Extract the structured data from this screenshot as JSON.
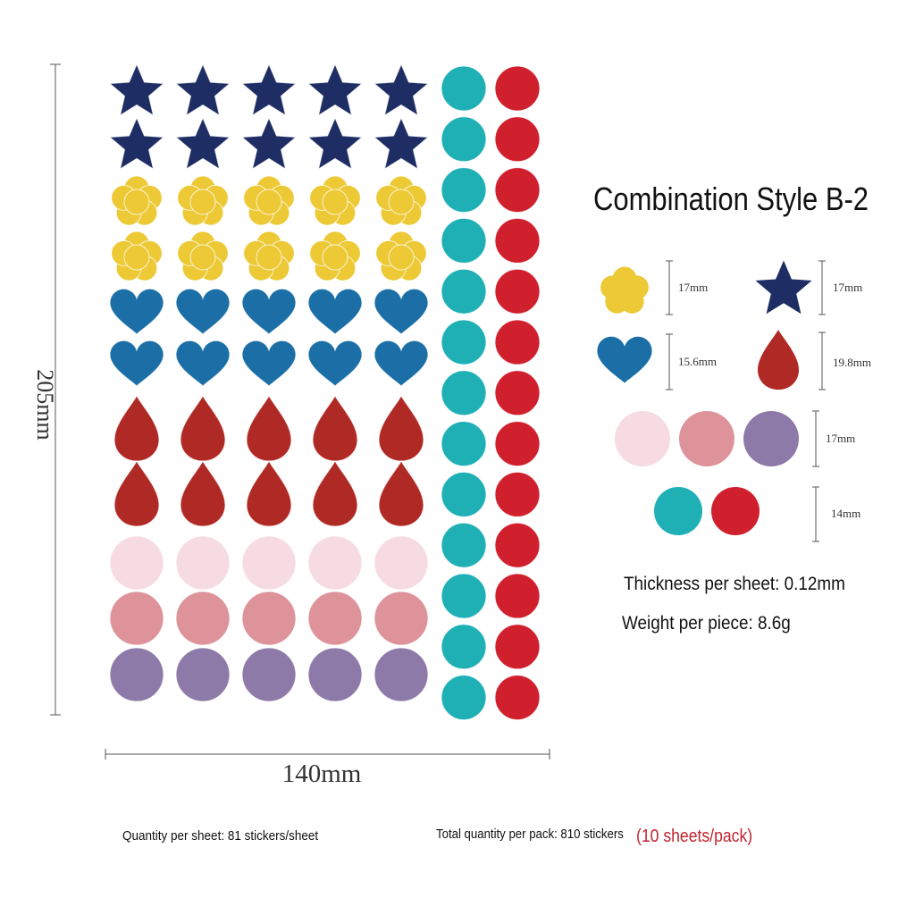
{
  "title": "Combination Style B-2",
  "sheet": {
    "height_label": "205mm",
    "width_label": "140mm",
    "shape_grid": {
      "columns": 5,
      "rows": [
        {
          "shape": "star",
          "color": "#1e2d63"
        },
        {
          "shape": "star",
          "color": "#1e2d63"
        },
        {
          "shape": "flower",
          "color": "#ecc935"
        },
        {
          "shape": "flower",
          "color": "#ecc935"
        },
        {
          "shape": "heart",
          "color": "#1b6fa6"
        },
        {
          "shape": "heart",
          "color": "#1b6fa6"
        },
        {
          "shape": "drop",
          "color": "#b02a25"
        },
        {
          "shape": "drop",
          "color": "#b02a25"
        },
        {
          "shape": "circle",
          "color": "#f7dbe2"
        },
        {
          "shape": "circle",
          "color": "#de939a"
        },
        {
          "shape": "circle",
          "color": "#8e7aa8"
        }
      ]
    },
    "dot_columns": [
      {
        "shape": "circle",
        "color": "#1fb0b6",
        "count": 13
      },
      {
        "shape": "circle",
        "color": "#d0202e",
        "count": 13
      }
    ]
  },
  "specs": {
    "flower": {
      "label": "17mm",
      "color": "#ecc935"
    },
    "star": {
      "label": "17mm",
      "color": "#1e2d63"
    },
    "heart": {
      "label": "15.6mm",
      "color": "#1b6fa6"
    },
    "drop": {
      "label": "19.8mm",
      "color": "#b02a25"
    },
    "circles_large": {
      "label": "17mm",
      "colors": [
        "#f7dbe2",
        "#de939a",
        "#8e7aa8"
      ]
    },
    "circles_small": {
      "label": "14mm",
      "colors": [
        "#1fb0b6",
        "#d0202e"
      ]
    }
  },
  "thickness": "Thickness per sheet: 0.12mm",
  "weight": "Weight per piece: 8.6g",
  "quantity_sheet": "Quantity per sheet: 81 stickers/sheet",
  "quantity_pack": "Total quantity per pack: 810 stickers",
  "pack_note": "(10 sheets/pack)",
  "colors": {
    "pack_note": "#c0232e",
    "title": "#111111"
  }
}
